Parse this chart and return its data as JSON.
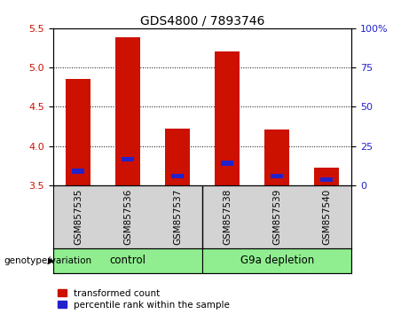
{
  "title": "GDS4800 / 7893746",
  "samples": [
    "GSM857535",
    "GSM857536",
    "GSM857537",
    "GSM857538",
    "GSM857539",
    "GSM857540"
  ],
  "red_bar_tops": [
    4.85,
    5.38,
    4.22,
    5.2,
    4.21,
    3.72
  ],
  "blue_marker_pos": [
    3.68,
    3.83,
    3.62,
    3.78,
    3.62,
    3.57
  ],
  "bar_bottom": 3.5,
  "ylim_left": [
    3.5,
    5.5
  ],
  "ylim_right": [
    0,
    100
  ],
  "yticks_left": [
    3.5,
    4.0,
    4.5,
    5.0,
    5.5
  ],
  "yticks_right": [
    0,
    25,
    50,
    75,
    100
  ],
  "ytick_labels_right": [
    "0",
    "25",
    "50",
    "75",
    "100%"
  ],
  "red_color": "#CC1100",
  "blue_color": "#2222CC",
  "bar_width": 0.5,
  "blue_bar_width": 0.25,
  "blue_bar_height": 0.06,
  "plot_bg_color": "#ffffff",
  "label_color_left": "#CC1100",
  "label_color_right": "#2222CC",
  "legend_items": [
    "transformed count",
    "percentile rank within the sample"
  ],
  "xlabel_area_color": "#d3d3d3",
  "group_box_color": "#90EE90",
  "group_labels": [
    "control",
    "G9a depletion"
  ],
  "group_label_prefix": "genotype/variation"
}
